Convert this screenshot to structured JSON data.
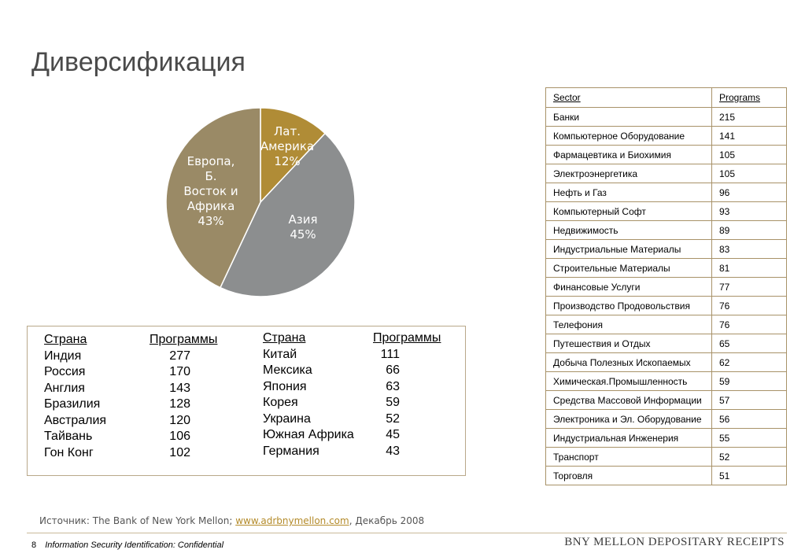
{
  "slide": {
    "title": "Диверсификация",
    "page_number": "8",
    "confidential": "Information Security Identification: Confidential",
    "brand": "BNY MELLON DEPOSITARY RECEIPTS",
    "source_prefix": "Источник: The Bank of New York Mellon; ",
    "source_link": "www.adrbnymellon.com",
    "source_suffix": ", Декабрь 2008"
  },
  "chart_data": {
    "type": "pie",
    "categories": [
      "Лат. Америка",
      "Азия",
      "Европа, Б. Восток и Африка"
    ],
    "values": [
      12,
      45,
      43
    ],
    "labels": [
      [
        "Лат.",
        "Америка",
        "12%"
      ],
      [
        "Азия",
        "45%"
      ],
      [
        "Европа,",
        "Б.",
        "Восток и",
        "Африка",
        "43%"
      ]
    ],
    "colors": [
      "#b08c36",
      "#8c8e8f",
      "#9a8a66"
    ]
  },
  "sectors": {
    "header": [
      "Sector",
      "Programs"
    ],
    "rows": [
      [
        "Банки",
        "215"
      ],
      [
        "Компьютерное Оборудование",
        "141"
      ],
      [
        "Фармацевтика и Биохимия",
        "105"
      ],
      [
        "Электроэнергетика",
        "105"
      ],
      [
        "Нефть и Газ",
        "96"
      ],
      [
        "Компьютерный Софт",
        "93"
      ],
      [
        "Недвижимость",
        "89"
      ],
      [
        "Индустриальные Материалы",
        "83"
      ],
      [
        "Строительные Материалы",
        "81"
      ],
      [
        "Финансовые Услуги",
        "77"
      ],
      [
        "Производство Продовольствия",
        "76"
      ],
      [
        "Телефония",
        "76"
      ],
      [
        "Путешествия и Отдых",
        "65"
      ],
      [
        "Добыча Полезных Ископаемых",
        "62"
      ],
      [
        "Химическая.Промышленность",
        "59"
      ],
      [
        "Средства Массовой Информации",
        "57"
      ],
      [
        "Электроника и Эл. Оборудование",
        "56"
      ],
      [
        "Индустриальная Инженерия",
        "55"
      ],
      [
        "Транспорт",
        "52"
      ],
      [
        "Торговля",
        "51"
      ]
    ]
  },
  "countries": {
    "header_country": "Страна",
    "header_programs": "Программы",
    "left": [
      [
        "Индия",
        "277"
      ],
      [
        "Россия",
        "170"
      ],
      [
        "Англия",
        "143"
      ],
      [
        "Бразилия",
        "128"
      ],
      [
        "Австралия",
        "120"
      ],
      [
        "Тайвань",
        "106"
      ],
      [
        "Гон Конг",
        "102"
      ]
    ],
    "right": [
      [
        "Китай",
        "111"
      ],
      [
        "Мексика",
        "66"
      ],
      [
        "Япония",
        "63"
      ],
      [
        "Корея",
        "59"
      ],
      [
        "Украина",
        "52"
      ],
      [
        "Южная Африка",
        "45"
      ],
      [
        "Германия",
        "43"
      ]
    ]
  }
}
